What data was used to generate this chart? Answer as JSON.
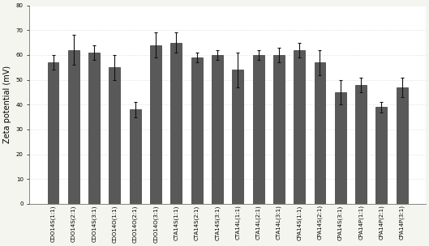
{
  "categories": [
    "CDO14S(1:1)",
    "CDO14S(2:1)",
    "CDO14S(3:1)",
    "CDO14O(1:1)",
    "CDO14O(2:1)",
    "CDO14O(3:1)",
    "CTA14S(1:1)",
    "CTA14S(2:1)",
    "CTA14S(3:1)",
    "CTA14L(1:1)",
    "CTA14L(2:1)",
    "CTA14L(3:1)",
    "CPA14S(1:1)",
    "CPA14S(2:1)",
    "CPA14S(3:1)",
    "CPA14P(1:1)",
    "CPA14P(2:1)",
    "CPA14P(3:1)"
  ],
  "values": [
    57,
    62,
    61,
    55,
    38,
    64,
    65,
    59,
    60,
    54,
    60,
    60,
    62,
    57,
    45,
    48,
    39,
    47
  ],
  "errors": [
    3,
    6,
    3,
    5,
    3,
    5,
    4,
    2,
    2,
    7,
    2,
    3,
    3,
    5,
    5,
    3,
    2,
    4
  ],
  "bar_color": "#595959",
  "bar_edgecolor": "#1a1a1a",
  "error_color": "#111111",
  "ylabel": "Zeta potential (mV)",
  "ylim": [
    0,
    80
  ],
  "yticks": [
    0,
    10,
    20,
    30,
    40,
    50,
    60,
    70,
    80
  ],
  "background_color": "#f5f5f0",
  "plot_bg_color": "#ffffff",
  "grid_color": "#d0d0d0",
  "ylabel_fontsize": 7,
  "tick_fontsize": 5,
  "bar_width": 0.55
}
